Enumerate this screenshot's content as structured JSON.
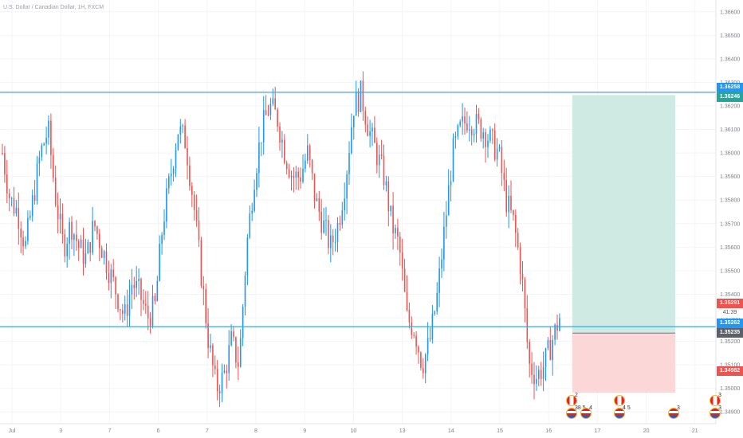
{
  "symbol": "U.S. Dollar / Canadian Dollar, 1H, FXCM",
  "price_axis_labels": [
    "1.36600",
    "1.36500",
    "1.36400",
    "1.36300",
    "1.36200",
    "1.36100",
    "1.36000",
    "1.35900",
    "1.35800",
    "1.35700",
    "1.35600",
    "1.35500",
    "1.35400",
    "1.35300",
    "1.35200",
    "1.35100",
    "1.35000",
    "1.34900"
  ],
  "time_axis_labels": [
    "Jul",
    "3",
    "7",
    "6",
    "7",
    "8",
    "9",
    "10",
    "13",
    "14",
    "15",
    "16",
    "17",
    "20",
    "21"
  ],
  "price_tags": {
    "upper_line": "1.36258",
    "target": "1.36246",
    "current": "1.35291",
    "countdown": "41:39",
    "lower_line": "1.35262",
    "entry": "1.35235",
    "stop": "1.34982"
  },
  "events": [
    {
      "flag": "ca",
      "count": "2"
    },
    {
      "flag": "us",
      "count": "38 5"
    },
    {
      "flag": "us",
      "count": "4"
    },
    {
      "flag": "ca",
      "count": ""
    },
    {
      "flag": "us",
      "count": "4 5"
    },
    {
      "flag": "us",
      "count": "3"
    },
    {
      "flag": "ca",
      "count": "3"
    },
    {
      "flag": "us",
      "count": "3"
    }
  ],
  "colors": {
    "up": "#2196f3",
    "down": "#ef5350",
    "target_zone": "#cfe9e3",
    "stop_zone": "#fcd7d7",
    "line": "#42a5e0"
  },
  "chart_data": {
    "type": "candlestick",
    "title": "U.S. Dollar / Canadian Dollar, 1H, FXCM",
    "ylim": [
      1.3485,
      1.3665
    ],
    "horizontal_lines": [
      1.36258,
      1.35262
    ],
    "position": {
      "entry": 1.35235,
      "target": 1.36246,
      "stop": 1.34982
    },
    "close_path": [
      1.36,
      1.358,
      1.3575,
      1.356,
      1.358,
      1.36,
      1.361,
      1.358,
      1.356,
      1.357,
      1.356,
      1.3555,
      1.357,
      1.356,
      1.355,
      1.354,
      1.353,
      1.3545,
      1.354,
      1.353,
      1.3535,
      1.357,
      1.359,
      1.361,
      1.3605,
      1.358,
      1.355,
      1.352,
      1.35,
      1.3505,
      1.352,
      1.351,
      1.356,
      1.359,
      1.361,
      1.362,
      1.3615,
      1.36,
      1.359,
      1.359,
      1.36,
      1.358,
      1.357,
      1.356,
      1.357,
      1.359,
      1.362,
      1.3625,
      1.361,
      1.36,
      1.359,
      1.357,
      1.356,
      1.353,
      1.3525,
      1.351,
      1.352,
      1.354,
      1.357,
      1.36,
      1.361,
      1.3615,
      1.3612,
      1.361,
      1.3605,
      1.36,
      1.358,
      1.357,
      1.355,
      1.351,
      1.3505,
      1.351,
      1.352,
      1.353
    ]
  }
}
